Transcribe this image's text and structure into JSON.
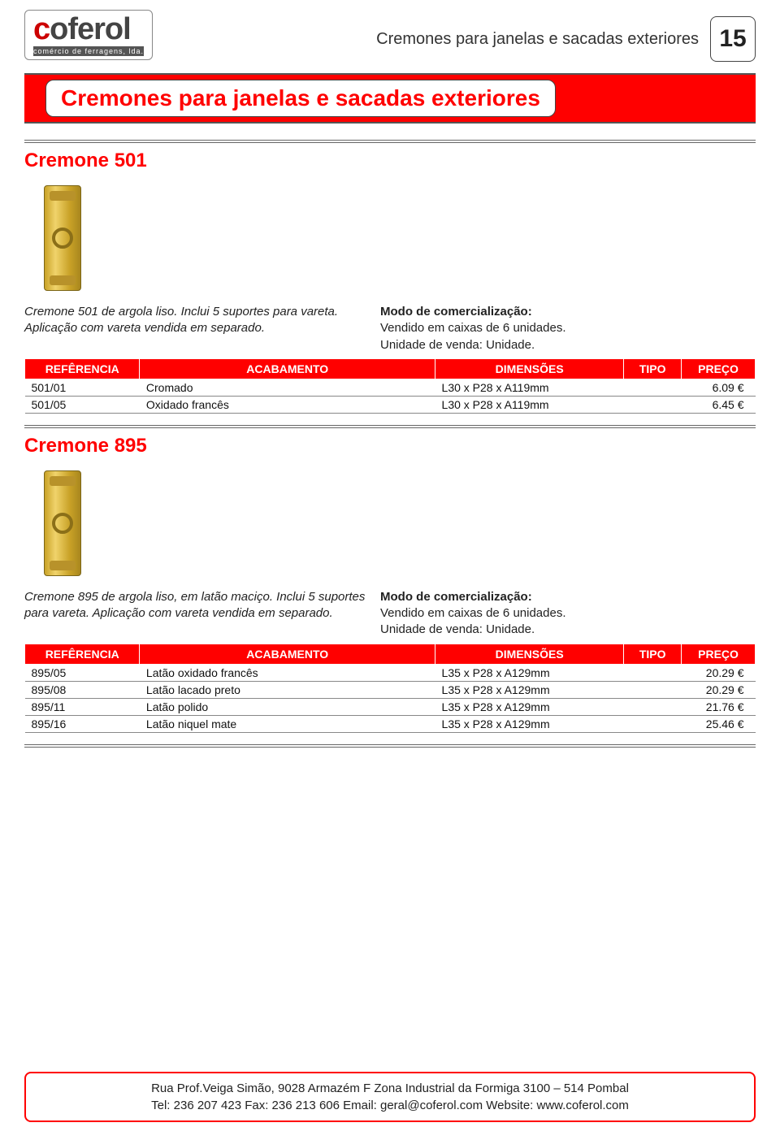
{
  "header": {
    "logo_main_c": "c",
    "logo_main_rest": "oferol",
    "logo_sub": "comércio de ferragens, lda.",
    "breadcrumb": "Cremones para janelas e sacadas exteriores",
    "page_number": "15"
  },
  "banner": {
    "title": "Cremones para janelas e sacadas exteriores"
  },
  "colors": {
    "accent": "#ff0000",
    "text": "#222222",
    "border": "#666666"
  },
  "table_headers": {
    "ref": "REFÊRENCIA",
    "acab": "ACABAMENTO",
    "dim": "DIMENSÕES",
    "tipo": "TIPO",
    "preco": "PREÇO"
  },
  "sections": [
    {
      "title": "Cremone 501",
      "desc_left": "Cremone 501 de argola liso. Inclui 5 suportes para vareta. Aplicação com vareta vendida em separado.",
      "desc_right_label": "Modo de comercialização:",
      "desc_right_l1": "Vendido em caixas de 6 unidades.",
      "desc_right_l2": "Unidade de venda: Unidade.",
      "rows": [
        {
          "ref": "501/01",
          "acab": "Cromado",
          "dim": "L30 x P28 x A119mm",
          "tipo": "",
          "preco": "6.09 €"
        },
        {
          "ref": "501/05",
          "acab": "Oxidado francês",
          "dim": "L30 x P28 x A119mm",
          "tipo": "",
          "preco": "6.45 €"
        }
      ]
    },
    {
      "title": "Cremone 895",
      "desc_left": "Cremone 895 de argola liso, em latão maciço. Inclui 5 suportes para vareta. Aplicação com vareta vendida em separado.",
      "desc_right_label": "Modo de comercialização:",
      "desc_right_l1": "Vendido em caixas de 6 unidades.",
      "desc_right_l2": "Unidade de venda: Unidade.",
      "rows": [
        {
          "ref": "895/05",
          "acab": "Latão oxidado francês",
          "dim": "L35 x P28 x A129mm",
          "tipo": "",
          "preco": "20.29 €"
        },
        {
          "ref": "895/08",
          "acab": "Latão lacado preto",
          "dim": "L35 x P28 x A129mm",
          "tipo": "",
          "preco": "20.29 €"
        },
        {
          "ref": "895/11",
          "acab": "Latão polido",
          "dim": "L35 x P28 x A129mm",
          "tipo": "",
          "preco": "21.76 €"
        },
        {
          "ref": "895/16",
          "acab": "Latão niquel mate",
          "dim": "L35 x P28 x A129mm",
          "tipo": "",
          "preco": "25.46 €"
        }
      ]
    }
  ],
  "footer": {
    "line1": "Rua Prof.Veiga Simão, 9028   Armazém F    Zona Industrial da Formiga    3100 – 514 Pombal",
    "line2": "Tel: 236 207 423   Fax: 236 213 606   Email: geral@coferol.com  Website: www.coferol.com"
  }
}
